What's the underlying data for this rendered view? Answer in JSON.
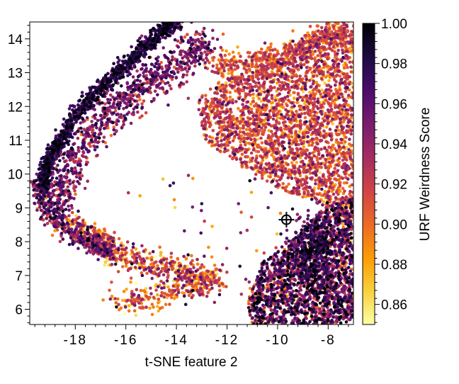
{
  "chart_data": {
    "type": "scatter",
    "title": "",
    "xlabel": "t-SNE feature 2",
    "ylabel": "",
    "xlim": [
      -19.8,
      -7.0
    ],
    "ylim": [
      5.55,
      14.5
    ],
    "x_ticks": [
      -18,
      -16,
      -14,
      -12,
      -10,
      -8
    ],
    "x_tick_labels": [
      "-18",
      "-16",
      "-14",
      "-12",
      "-10",
      "-8"
    ],
    "y_ticks": [
      6,
      7,
      8,
      9,
      10,
      11,
      12,
      13,
      14
    ],
    "y_tick_labels": [
      "6",
      "7",
      "8",
      "9",
      "10",
      "11",
      "12",
      "13",
      "14"
    ],
    "grid": false,
    "legend": "none",
    "colorbar": {
      "label": "URF Weirdness Score",
      "range": [
        0.85,
        1.0
      ],
      "ticks": [
        0.86,
        0.88,
        0.9,
        0.92,
        0.94,
        0.96,
        0.98,
        1.0
      ],
      "tick_labels": [
        "0.86",
        "0.88",
        "0.90",
        "0.92",
        "0.94",
        "0.96",
        "0.98",
        "1.00"
      ],
      "colormap": "inferno_r",
      "colors": [
        "#fcffa4",
        "#f7d13d",
        "#fb9b06",
        "#ed6925",
        "#cf4446",
        "#a52c60",
        "#781c6d",
        "#4a0c6b",
        "#1b0c41",
        "#000004"
      ]
    },
    "marker": {
      "symbol": "circled-crosshair",
      "x": -9.65,
      "y": 8.65,
      "color": "#000000"
    },
    "clusters": [
      {
        "region": "upper-left arc",
        "x_range": [
          -19.5,
          -13.8
        ],
        "y_range": [
          9.3,
          14.5
        ],
        "score_range": [
          0.95,
          1.0
        ]
      },
      {
        "region": "inner arc",
        "x_range": [
          -19.0,
          -12.6
        ],
        "y_range": [
          8.0,
          14.0
        ],
        "score_range": [
          0.9,
          0.97
        ]
      },
      {
        "region": "upper-right band",
        "x_range": [
          -13.2,
          -7.0
        ],
        "y_range": [
          9.0,
          14.2
        ],
        "score_range": [
          0.88,
          0.94
        ]
      },
      {
        "region": "lower-right region",
        "x_range": [
          -11.5,
          -7.0
        ],
        "y_range": [
          5.55,
          9.5
        ],
        "score_range": [
          0.86,
          0.99
        ]
      },
      {
        "region": "lower-left tail",
        "x_range": [
          -18.5,
          -12.0
        ],
        "y_range": [
          5.6,
          8.2
        ],
        "score_range": [
          0.86,
          0.95
        ]
      }
    ]
  }
}
